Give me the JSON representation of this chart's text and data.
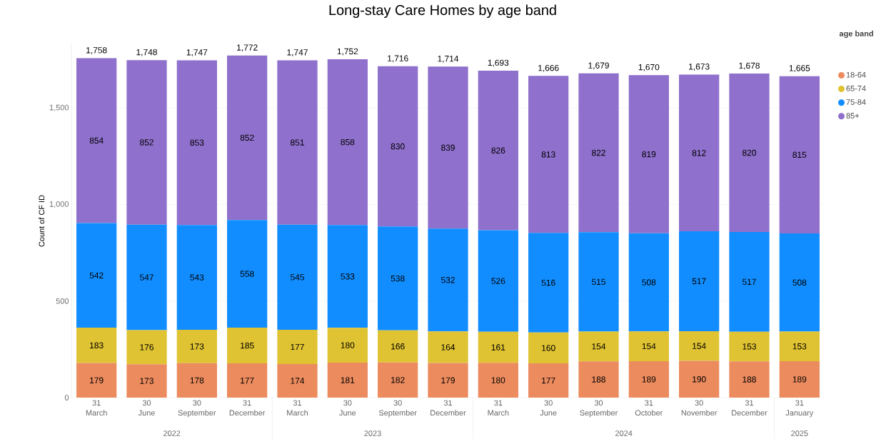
{
  "chart_data": {
    "type": "bar",
    "stacked": true,
    "title": "Long-stay Care Homes by age band",
    "ylabel": "Count of CF ID",
    "legend_title": "age band",
    "legend": "top right",
    "grid": "y",
    "data_labels": true,
    "categories": [
      "31 March",
      "30 June",
      "30 September",
      "31 December",
      "31 March",
      "30 June",
      "30 September",
      "31 December",
      "31 March",
      "30 June",
      "30 September",
      "31 October",
      "30 November",
      "31 December",
      "31 January"
    ],
    "annotations": [
      "2022",
      "2023",
      "2024",
      "2025"
    ],
    "ylim": [
      0,
      1830
    ],
    "yticks": [
      {
        "value": 0,
        "label": "0"
      },
      {
        "value": 500,
        "label": "500"
      },
      {
        "value": 1000,
        "label": "1,000"
      },
      {
        "value": 1500,
        "label": "1,500"
      }
    ],
    "series": [
      {
        "name": "18-64",
        "color": "#ec8b5e",
        "values": [
          179,
          173,
          178,
          177,
          174,
          181,
          182,
          179,
          180,
          177,
          188,
          189,
          190,
          188,
          189
        ]
      },
      {
        "name": "65-74",
        "color": "#e0c332",
        "values": [
          183,
          176,
          173,
          185,
          177,
          180,
          166,
          164,
          161,
          160,
          154,
          154,
          154,
          153,
          153
        ]
      },
      {
        "name": "75-84",
        "color": "#118dff",
        "values": [
          542,
          547,
          543,
          558,
          545,
          533,
          538,
          532,
          526,
          516,
          515,
          508,
          517,
          517,
          508
        ]
      },
      {
        "name": "85+",
        "color": "#8f70cc",
        "values": [
          854,
          852,
          853,
          852,
          851,
          858,
          830,
          839,
          826,
          813,
          822,
          819,
          812,
          820,
          815
        ]
      }
    ],
    "totals": [
      "1,758",
      "1,748",
      "1,747",
      "1,772",
      "1,747",
      "1,752",
      "1,716",
      "1,714",
      "1,693",
      "1,666",
      "1,679",
      "1,670",
      "1,673",
      "1,678",
      "1,665"
    ]
  }
}
